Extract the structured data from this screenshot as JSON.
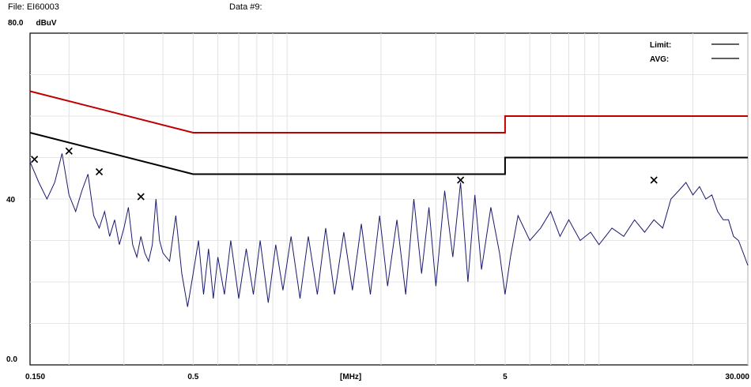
{
  "header": {
    "file": "File: EI60003",
    "data": "Data #9:",
    "y_top": "80.0",
    "y_unit": "dBuV"
  },
  "chart_data": {
    "type": "line",
    "title": "",
    "xlabel": "[MHz]",
    "ylabel": "dBuV",
    "x_scale": "log",
    "xlim": [
      0.15,
      30
    ],
    "ylim": [
      0,
      80
    ],
    "grid": true,
    "legend_position": "top-right",
    "x_tick_labels": [
      {
        "v": 0.15,
        "label": "0.150"
      },
      {
        "v": 0.5,
        "label": "0.5"
      },
      {
        "v": 5,
        "label": "5"
      },
      {
        "v": 30,
        "label": "30.000"
      }
    ],
    "x_center_label": "[MHz]",
    "y_tick_labels": [
      {
        "v": 40,
        "label": "40"
      },
      {
        "v": 0,
        "label": "0.0"
      }
    ],
    "legend": [
      {
        "label": "Limit:",
        "color": "#000000"
      },
      {
        "label": "AVG:",
        "color": "#000000"
      }
    ],
    "series": [
      {
        "color": "#c00000",
        "x": [
          0.15,
          0.5,
          0.5,
          5,
          5,
          30
        ],
        "y": [
          66,
          56,
          56,
          56,
          60,
          60
        ]
      },
      {
        "color": "#000000",
        "x": [
          0.15,
          0.5,
          0.5,
          5,
          5,
          30
        ],
        "y": [
          56,
          46,
          46,
          46,
          50,
          50
        ]
      },
      {
        "color": "#1a1a6e",
        "x": [
          0.15,
          0.16,
          0.17,
          0.18,
          0.19,
          0.2,
          0.21,
          0.22,
          0.23,
          0.24,
          0.25,
          0.26,
          0.27,
          0.28,
          0.29,
          0.3,
          0.31,
          0.32,
          0.33,
          0.34,
          0.35,
          0.36,
          0.37,
          0.38,
          0.39,
          0.4,
          0.42,
          0.44,
          0.46,
          0.48,
          0.5,
          0.52,
          0.54,
          0.56,
          0.58,
          0.6,
          0.63,
          0.66,
          0.7,
          0.74,
          0.78,
          0.82,
          0.87,
          0.92,
          0.97,
          1.03,
          1.1,
          1.17,
          1.25,
          1.33,
          1.42,
          1.52,
          1.62,
          1.73,
          1.85,
          1.98,
          2.1,
          2.25,
          2.4,
          2.55,
          2.7,
          2.85,
          3.0,
          3.2,
          3.4,
          3.6,
          3.8,
          4.0,
          4.2,
          4.5,
          4.8,
          5.0,
          5.2,
          5.5,
          6.0,
          6.5,
          7.0,
          7.5,
          8.0,
          8.7,
          9.4,
          10.0,
          11.0,
          12.0,
          13.0,
          14.0,
          15.0,
          16.0,
          17.0,
          18.0,
          19.0,
          20.0,
          21.0,
          22.0,
          23.0,
          24.0,
          25.0,
          26.0,
          27.0,
          28.0,
          29.0,
          30.0
        ],
        "y": [
          49,
          44,
          40,
          44,
          51,
          41,
          37,
          42,
          46,
          36,
          33,
          37,
          31,
          35,
          29,
          33,
          38,
          29,
          26,
          31,
          27,
          25,
          29,
          40,
          30,
          27,
          25,
          36,
          22,
          14,
          22,
          30,
          17,
          28,
          16,
          26,
          17,
          30,
          16,
          28,
          17,
          30,
          15,
          29,
          18,
          31,
          16,
          31,
          17,
          33,
          17,
          32,
          18,
          34,
          17,
          36,
          19,
          35,
          17,
          40,
          22,
          38,
          19,
          42,
          26,
          44,
          20,
          41,
          23,
          38,
          27,
          17,
          26,
          36,
          30,
          33,
          37,
          31,
          35,
          30,
          32,
          29,
          33,
          31,
          35,
          32,
          35,
          33,
          40,
          42,
          44,
          41,
          43,
          40,
          41,
          37,
          35,
          35,
          31,
          30,
          27,
          24
        ]
      }
    ],
    "markers": {
      "x": [
        0.155,
        0.2,
        0.25,
        0.34,
        3.6,
        15.0
      ],
      "y": [
        49,
        51,
        46,
        40,
        44,
        44
      ]
    }
  }
}
